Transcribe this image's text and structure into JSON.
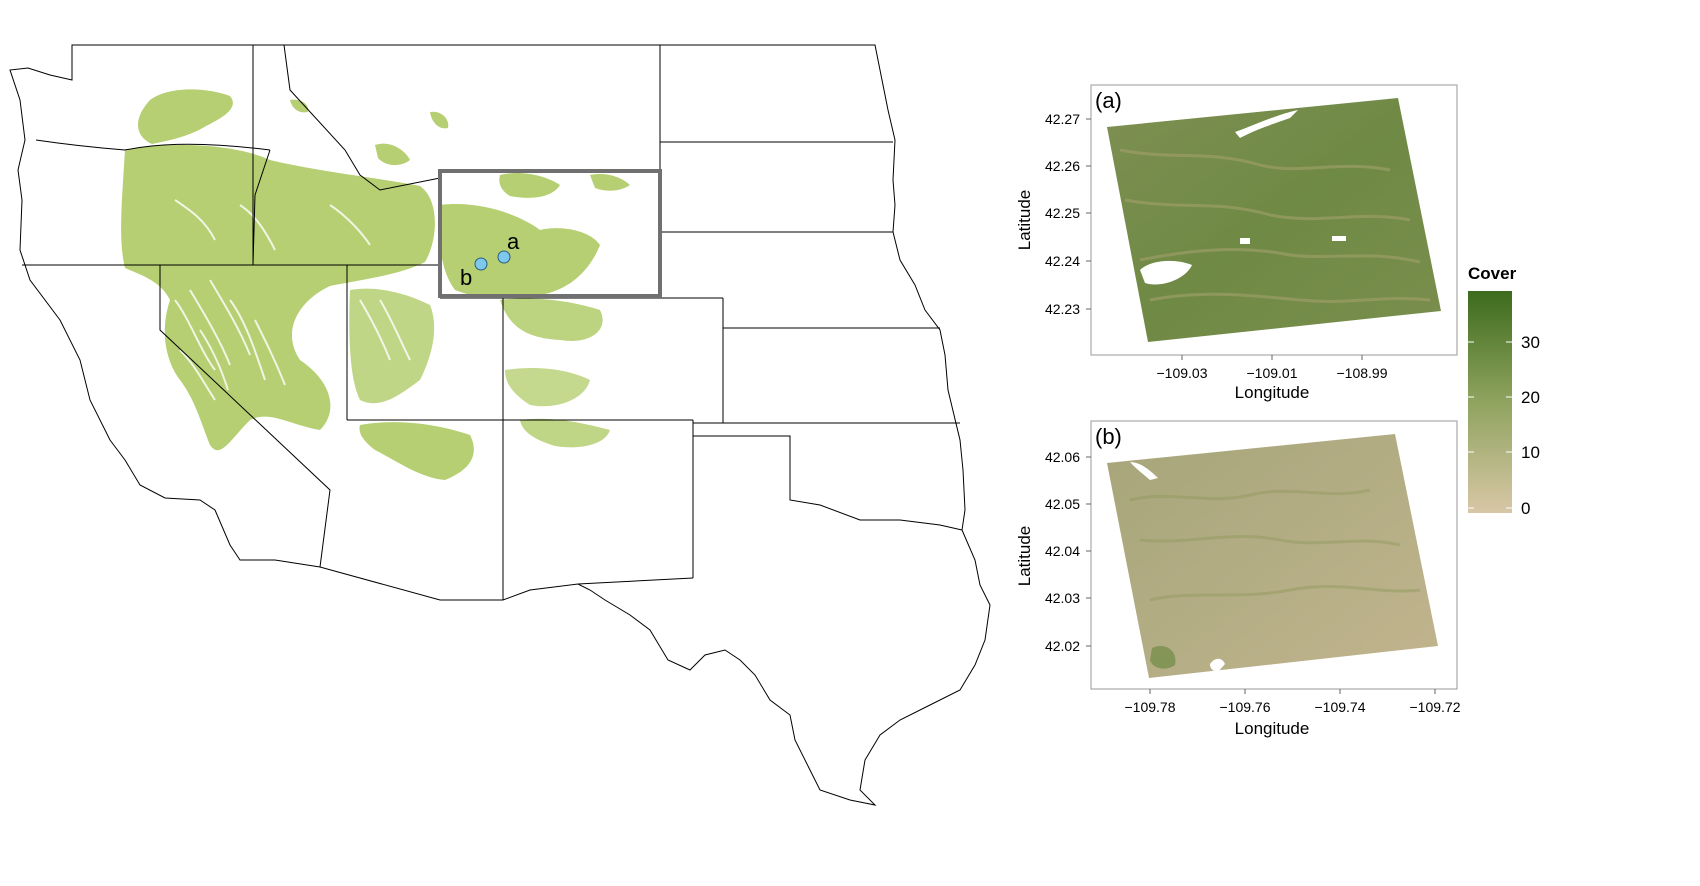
{
  "map": {
    "site_labels": [
      "a",
      "b"
    ],
    "colors": {
      "habitat": "#b5cf72",
      "site_marker": "#7ec8ee",
      "inset_box": "#707070",
      "state_lines": "#000000"
    }
  },
  "panels": [
    {
      "tag": "(a)",
      "xlabel": "Longitude",
      "ylabel": "Latitude",
      "xticks": [
        "−109.03",
        "−109.01",
        "−108.99"
      ],
      "yticks": [
        "42.27",
        "42.26",
        "42.25",
        "42.24",
        "42.23"
      ]
    },
    {
      "tag": "(b)",
      "xlabel": "Longitude",
      "ylabel": "Latitude",
      "xticks": [
        "−109.78",
        "−109.76",
        "−109.74",
        "−109.72"
      ],
      "yticks": [
        "42.06",
        "42.05",
        "42.04",
        "42.03",
        "42.02"
      ]
    }
  ],
  "legend": {
    "title": "Cover",
    "ticks": [
      "30",
      "20",
      "10",
      "0"
    ],
    "colors": {
      "high": "#3d6b1e",
      "low": "#d8c7a6"
    }
  }
}
